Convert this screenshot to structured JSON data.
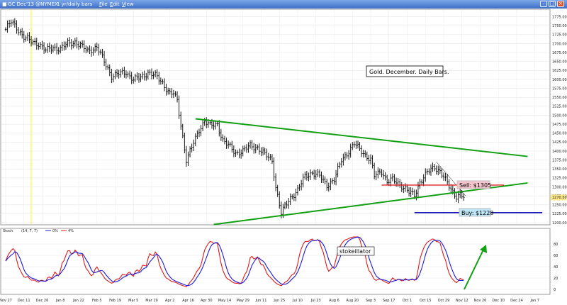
{
  "window": {
    "title": "GC Dec'13 @NYMEX",
    "period_menu": "1 yr/daily bars",
    "menus": [
      "File",
      "Edit",
      "View"
    ]
  },
  "colors": {
    "trendline": "#11a011",
    "sell_line": "#e02020",
    "buy_line": "#1a1ab4",
    "stoch_k": "#1a1adc",
    "stoch_d": "#e01818",
    "highlight": "#fff7b0",
    "sell_label_bg": "#f5c4cc",
    "buy_label_bg": "#bfe7f7",
    "price_tag_bg": "#fde68a"
  },
  "chart_data": {
    "type": "ohlc",
    "title": "Gold. December. Daily Bars.",
    "price_axis": {
      "ticks": [
        1200.0,
        1225.0,
        1250.0,
        1275.0,
        1300.0,
        1325.0,
        1350.0,
        1375.0,
        1400.0,
        1425.0,
        1450.0,
        1475.0,
        1500.0,
        1525.0,
        1550.0,
        1575.0,
        1600.0,
        1625.0,
        1650.0,
        1675.0,
        1700.0,
        1725.0,
        1750.0,
        1775.0
      ],
      "tick_labels": [
        "1200.00",
        "1225.00",
        "1250.00",
        "1275.00",
        "1300.00",
        "1325.00",
        "1350.00",
        "1375.00",
        "1400.00",
        "1425.00",
        "1450.00",
        "1475.00",
        "1500.00",
        "1525.00",
        "1550.00",
        "1575.00",
        "1600.00",
        "1625.00",
        "1650.00",
        "1675.00",
        "1700.00",
        "1725.00",
        "1750.00",
        "1775.00"
      ],
      "range": [
        1200,
        1790
      ],
      "current_price": 1270.5,
      "current_price_label": "1270.50"
    },
    "date_labels": [
      "Nov 27",
      "Dec 11",
      "Dec 26",
      "Jan 8",
      "Jan 22",
      "Feb 5",
      "Feb 19",
      "Mar 5",
      "Mar 19",
      "Apr 2",
      "Apr 16",
      "Apr 30",
      "May 14",
      "May 29",
      "Jun 11",
      "Jun 25",
      "Jul 10",
      "Jul 23",
      "Aug 6",
      "Aug 20",
      "Sep 3",
      "Sep 17",
      "Oct 1",
      "Oct 15",
      "Oct 29",
      "Nov 12",
      "Nov 26",
      "Dec 10",
      "Dec 24",
      "Jan 7"
    ],
    "date_index": [
      0,
      10,
      20,
      30,
      40,
      50,
      60,
      70,
      80,
      90,
      100,
      110,
      120,
      130,
      140,
      150,
      160,
      170,
      180,
      190,
      200,
      210,
      220,
      230,
      240,
      250,
      260,
      270,
      280,
      290
    ],
    "price_anchors": [
      [
        0,
        1740
      ],
      [
        3,
        1760
      ],
      [
        6,
        1745
      ],
      [
        10,
        1718
      ],
      [
        14,
        1705
      ],
      [
        18,
        1700
      ],
      [
        22,
        1680
      ],
      [
        26,
        1690
      ],
      [
        30,
        1685
      ],
      [
        34,
        1700
      ],
      [
        38,
        1705
      ],
      [
        42,
        1690
      ],
      [
        45,
        1680
      ],
      [
        50,
        1690
      ],
      [
        55,
        1640
      ],
      [
        58,
        1610
      ],
      [
        62,
        1615
      ],
      [
        66,
        1620
      ],
      [
        70,
        1600
      ],
      [
        74,
        1605
      ],
      [
        78,
        1620
      ],
      [
        82,
        1610
      ],
      [
        86,
        1590
      ],
      [
        90,
        1560
      ],
      [
        92,
        1560
      ],
      [
        94,
        1540
      ],
      [
        97,
        1440
      ],
      [
        99,
        1375
      ],
      [
        102,
        1410
      ],
      [
        106,
        1460
      ],
      [
        109,
        1485
      ],
      [
        112,
        1470
      ],
      [
        116,
        1475
      ],
      [
        119,
        1430
      ],
      [
        123,
        1410
      ],
      [
        126,
        1395
      ],
      [
        130,
        1400
      ],
      [
        134,
        1415
      ],
      [
        138,
        1410
      ],
      [
        142,
        1390
      ],
      [
        146,
        1375
      ],
      [
        148,
        1300
      ],
      [
        150,
        1250
      ],
      [
        151,
        1225
      ],
      [
        153,
        1245
      ],
      [
        156,
        1270
      ],
      [
        160,
        1290
      ],
      [
        164,
        1330
      ],
      [
        168,
        1340
      ],
      [
        172,
        1330
      ],
      [
        176,
        1305
      ],
      [
        180,
        1320
      ],
      [
        184,
        1375
      ],
      [
        188,
        1400
      ],
      [
        191,
        1420
      ],
      [
        194,
        1405
      ],
      [
        197,
        1390
      ],
      [
        200,
        1375
      ],
      [
        202,
        1330
      ],
      [
        206,
        1345
      ],
      [
        209,
        1315
      ],
      [
        212,
        1320
      ],
      [
        215,
        1310
      ],
      [
        218,
        1300
      ],
      [
        221,
        1285
      ],
      [
        224,
        1275
      ],
      [
        227,
        1315
      ],
      [
        231,
        1340
      ],
      [
        235,
        1355
      ],
      [
        238,
        1345
      ],
      [
        240,
        1328
      ],
      [
        243,
        1300
      ],
      [
        245,
        1285
      ],
      [
        247,
        1275
      ],
      [
        249,
        1281
      ],
      [
        251,
        1270.5
      ]
    ],
    "trendlines": [
      {
        "name": "upper",
        "from": [
          104,
          1490
        ],
        "to": [
          286,
          1385
        ]
      },
      {
        "name": "lower",
        "from": [
          114,
          1195
        ],
        "to": [
          286,
          1311
        ]
      }
    ],
    "levels": [
      {
        "name": "sell",
        "value": 1305,
        "label": "Sell: $1305"
      },
      {
        "name": "buy",
        "value": 1228,
        "label": "Buy: $1228"
      }
    ],
    "highlight_index": 14
  },
  "stochastic": {
    "label": "Stoch",
    "params": "(14, 7, 7)",
    "legend": [
      {
        "name": "K",
        "value": "0%"
      },
      {
        "name": "D",
        "value": "4%"
      }
    ],
    "ticks": [
      0,
      20,
      40,
      60,
      80
    ],
    "tick_labels": [
      "0",
      "20",
      "40",
      "60",
      "80"
    ],
    "range": [
      -5,
      100
    ],
    "annotation": "stokeillator"
  }
}
